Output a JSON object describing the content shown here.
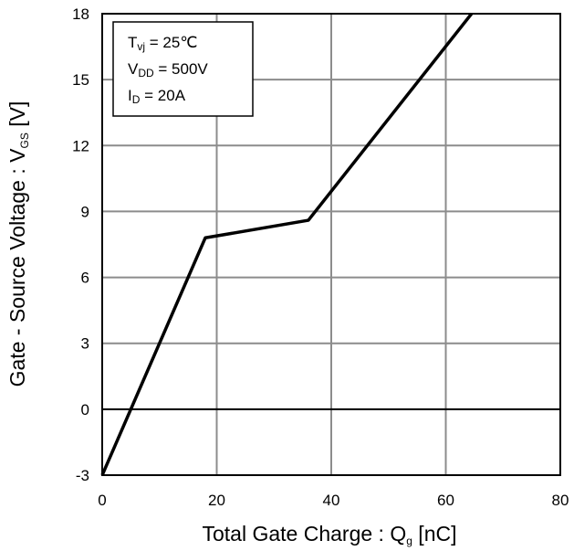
{
  "chart_data": {
    "type": "line",
    "xlabel": "Total Gate Charge : Q",
    "xlabel_sub": "g",
    "xlabel_unit": " [nC]",
    "ylabel": "Gate - Source Voltage : V",
    "ylabel_sub": "GS",
    "ylabel_unit": " [V]",
    "xlim": [
      0,
      80
    ],
    "ylim": [
      -3,
      18
    ],
    "xticks": [
      0,
      20,
      40,
      60,
      80
    ],
    "yticks": [
      -3,
      0,
      3,
      6,
      9,
      12,
      15,
      18
    ],
    "grid": true,
    "zero_line": true,
    "series": [
      {
        "x": [
          0,
          18,
          36,
          64.5
        ],
        "y": [
          -3,
          7.8,
          8.6,
          18
        ],
        "color": "#000000"
      }
    ],
    "annotations": [
      {
        "main": "T",
        "sub": "vj",
        "rest": " = 25℃"
      },
      {
        "main": "V",
        "sub": "DD",
        "rest": " = 500V"
      },
      {
        "main": "I",
        "sub": "D",
        "rest": " = 20A"
      }
    ],
    "legend_placement": "top-left"
  }
}
